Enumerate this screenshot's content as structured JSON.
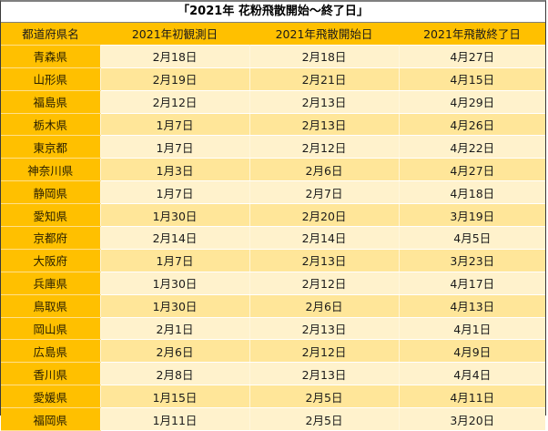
{
  "title": "「2021年 花粉飛散開始〜終了日」",
  "colors": {
    "header_bg": "#FFC000",
    "prefecture_bg": "#FFC000",
    "row_dark_bg": "#FFE699",
    "row_light_bg": "#FFF2CC"
  },
  "table": {
    "headers": [
      "都道府県名",
      "2021年初観測日",
      "2021年飛散開始日",
      "2021年飛散終了日"
    ],
    "rows": [
      {
        "prefecture": "青森県",
        "first_observed": "2月18日",
        "start": "2月18日",
        "end": "4月27日"
      },
      {
        "prefecture": "山形県",
        "first_observed": "2月19日",
        "start": "2月21日",
        "end": "4月15日"
      },
      {
        "prefecture": "福島県",
        "first_observed": "2月12日",
        "start": "2月13日",
        "end": "4月29日"
      },
      {
        "prefecture": "栃木県",
        "first_observed": "1月7日",
        "start": "2月13日",
        "end": "4月26日"
      },
      {
        "prefecture": "東京都",
        "first_observed": "1月7日",
        "start": "2月12日",
        "end": "4月22日"
      },
      {
        "prefecture": "神奈川県",
        "first_observed": "1月3日",
        "start": "2月6日",
        "end": "4月27日"
      },
      {
        "prefecture": "静岡県",
        "first_observed": "1月7日",
        "start": "2月7日",
        "end": "4月18日"
      },
      {
        "prefecture": "愛知県",
        "first_observed": "1月30日",
        "start": "2月20日",
        "end": "3月19日"
      },
      {
        "prefecture": "京都府",
        "first_observed": "2月14日",
        "start": "2月14日",
        "end": "4月5日"
      },
      {
        "prefecture": "大阪府",
        "first_observed": "1月7日",
        "start": "2月13日",
        "end": "3月23日"
      },
      {
        "prefecture": "兵庫県",
        "first_observed": "1月30日",
        "start": "2月12日",
        "end": "4月17日"
      },
      {
        "prefecture": "鳥取県",
        "first_observed": "1月30日",
        "start": "2月6日",
        "end": "4月13日"
      },
      {
        "prefecture": "岡山県",
        "first_observed": "2月1日",
        "start": "2月13日",
        "end": "4月1日"
      },
      {
        "prefecture": "広島県",
        "first_observed": "2月6日",
        "start": "2月12日",
        "end": "4月9日"
      },
      {
        "prefecture": "香川県",
        "first_observed": "2月8日",
        "start": "2月13日",
        "end": "4月4日"
      },
      {
        "prefecture": "愛媛県",
        "first_observed": "1月15日",
        "start": "2月5日",
        "end": "4月11日"
      },
      {
        "prefecture": "福岡県",
        "first_observed": "1月11日",
        "start": "2月5日",
        "end": "3月20日"
      }
    ]
  }
}
